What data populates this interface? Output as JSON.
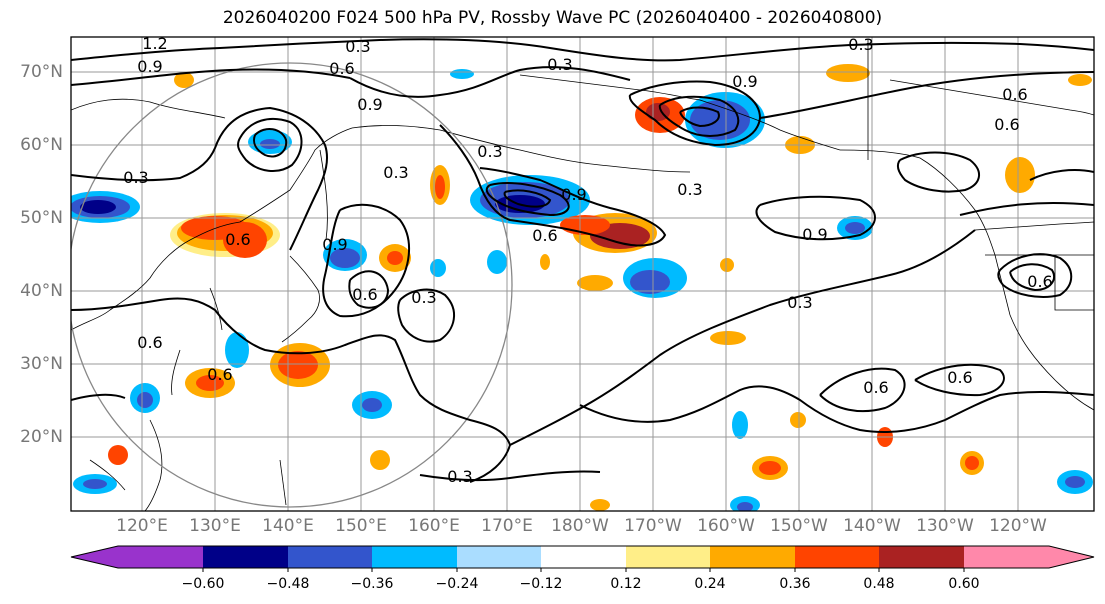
{
  "title": "2026040200 F024 500 hPa PV, Rossby Wave PC (2026040400 - 2026040800)",
  "lat_labels": [
    "70°N",
    "60°N",
    "50°N",
    "40°N",
    "30°N",
    "20°N"
  ],
  "lon_labels": [
    "120°E",
    "130°E",
    "140°E",
    "150°E",
    "160°E",
    "170°E",
    "180°W",
    "170°W",
    "160°W",
    "150°W",
    "140°W",
    "130°W",
    "120°W"
  ],
  "colorbar": {
    "colors": [
      "#9933cc",
      "#000088",
      "#3355cc",
      "#00bbff",
      "#aaddff",
      "#ffffff",
      "#ffee88",
      "#ffaa00",
      "#ff4400",
      "#aa2222",
      "#ff88aa"
    ],
    "tick_labels": [
      "−0.60",
      "−0.48",
      "−0.36",
      "−0.24",
      "−0.12",
      "0.12",
      "0.24",
      "0.36",
      "0.48",
      "0.60"
    ]
  },
  "contour_labels": [
    "0.3",
    "0.6",
    "0.9",
    "1.2"
  ],
  "contour_label_instances": [
    "1.2",
    "0.3",
    "0.9",
    "0.6",
    "0.9",
    "0.3",
    "0.3",
    "0.6",
    "0.9",
    "0.6",
    "0.3",
    "0.3",
    "0.9",
    "0.6",
    "0.3",
    "0.3",
    "0.6",
    "0.6",
    "0.3",
    "0.6",
    "0.3",
    "0.9",
    "0.3",
    "0.6",
    "0.6",
    "0.6",
    "0.9",
    "0.6"
  ]
}
